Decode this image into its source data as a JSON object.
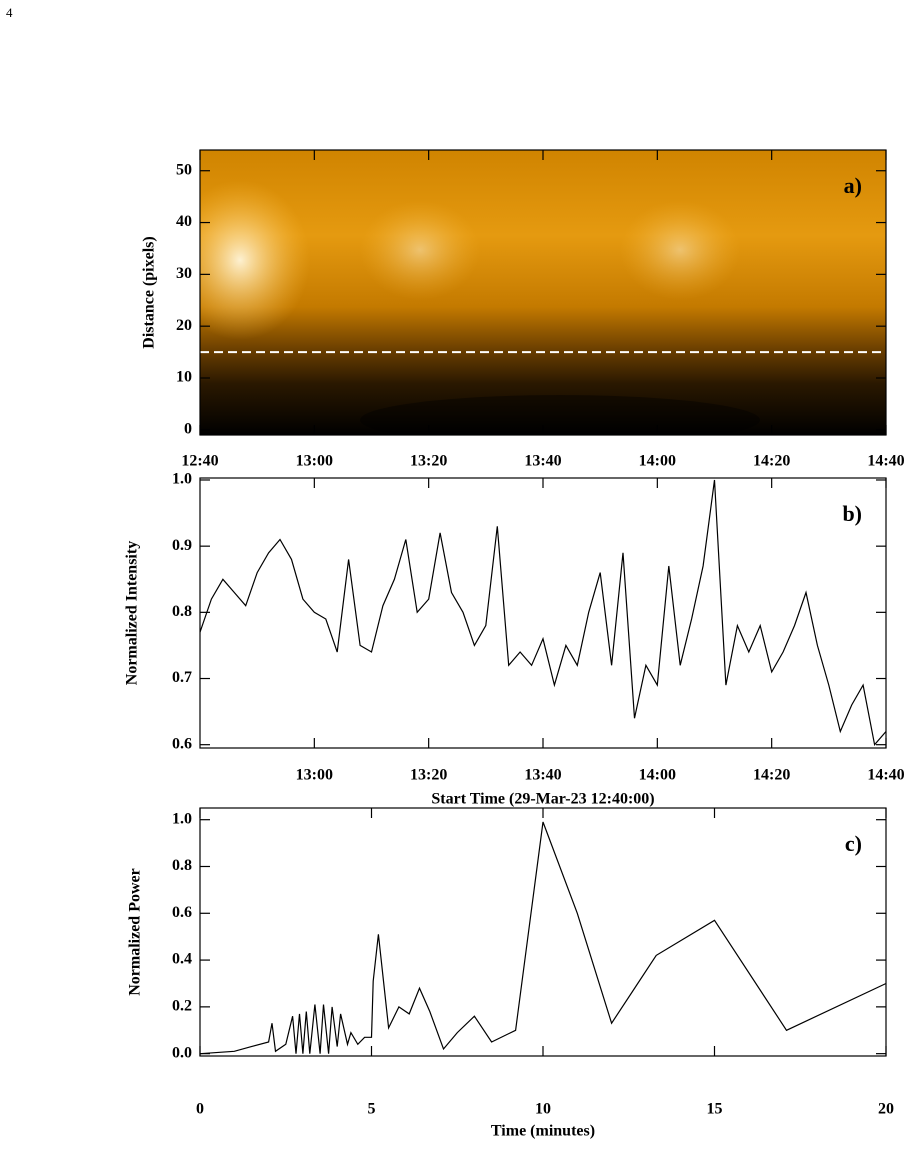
{
  "page_number": "4",
  "chart_data": [
    {
      "type": "heatmap",
      "panel_label": "a)",
      "ylabel": "Distance (pixels)",
      "xlim": [
        0,
        120
      ],
      "xticks": [
        {
          "value": 0,
          "label": "12:40"
        },
        {
          "value": 20,
          "label": "13:00"
        },
        {
          "value": 40,
          "label": "13:20"
        },
        {
          "value": 60,
          "label": "13:40"
        },
        {
          "value": 80,
          "label": "14:00"
        },
        {
          "value": 100,
          "label": "14:20"
        },
        {
          "value": 120,
          "label": "14:40"
        }
      ],
      "ylim": [
        -1,
        54
      ],
      "yticks": [
        0,
        10,
        20,
        30,
        40,
        50
      ],
      "reference_line": 15,
      "reference_color": "#ffffff"
    },
    {
      "type": "line",
      "panel_label": "b)",
      "ylabel": "Normalized Intensity",
      "xlabel": "Start Time (29-Mar-23 12:40:00)",
      "color": "#000000",
      "xlim": [
        0,
        120
      ],
      "xticks": [
        {
          "value": 20,
          "label": "13:00"
        },
        {
          "value": 40,
          "label": "13:20"
        },
        {
          "value": 60,
          "label": "13:40"
        },
        {
          "value": 80,
          "label": "14:00"
        },
        {
          "value": 100,
          "label": "14:20"
        },
        {
          "value": 120,
          "label": "14:40"
        }
      ],
      "ylim": [
        0.595,
        1.003
      ],
      "yticks": [
        0.6,
        0.7,
        0.8,
        0.9,
        {
          "value": 1,
          "label": "1.0"
        }
      ],
      "x": [
        0,
        2,
        4,
        6,
        8,
        10,
        12,
        14,
        16,
        18,
        20,
        22,
        24,
        26,
        28,
        30,
        32,
        34,
        36,
        38,
        40,
        42,
        44,
        46,
        48,
        50,
        52,
        54,
        56,
        58,
        60,
        62,
        64,
        66,
        68,
        70,
        72,
        74,
        76,
        78,
        80,
        82,
        84,
        86,
        88,
        90,
        92,
        94,
        96,
        98,
        100,
        102,
        104,
        106,
        108,
        110,
        112,
        114,
        116,
        118,
        120
      ],
      "values": [
        0.77,
        0.82,
        0.85,
        0.83,
        0.81,
        0.86,
        0.89,
        0.91,
        0.88,
        0.82,
        0.8,
        0.79,
        0.74,
        0.88,
        0.75,
        0.74,
        0.81,
        0.85,
        0.91,
        0.8,
        0.82,
        0.92,
        0.83,
        0.8,
        0.75,
        0.78,
        0.93,
        0.72,
        0.74,
        0.72,
        0.76,
        0.69,
        0.75,
        0.72,
        0.8,
        0.86,
        0.72,
        0.89,
        0.64,
        0.72,
        0.69,
        0.87,
        0.72,
        0.79,
        0.87,
        1.0,
        0.69,
        0.78,
        0.74,
        0.78,
        0.71,
        0.74,
        0.78,
        0.83,
        0.75,
        0.69,
        0.62,
        0.66,
        0.69,
        0.6,
        0.62
      ]
    },
    {
      "type": "line",
      "panel_label": "c)",
      "ylabel": "Normalized Power",
      "xlabel": "Time (minutes)",
      "color": "#000000",
      "xlim": [
        0,
        20
      ],
      "xticks": [
        0,
        5,
        10,
        15,
        20
      ],
      "ylim": [
        -0.01,
        1.05
      ],
      "yticks": [
        {
          "value": 0,
          "label": "0.0"
        },
        0.2,
        0.4,
        0.6,
        0.8,
        {
          "value": 1,
          "label": "1.0"
        }
      ],
      "x": [
        0,
        1,
        1.5,
        2,
        2.1,
        2.2,
        2.5,
        2.7,
        2.8,
        2.9,
        3.0,
        3.1,
        3.2,
        3.35,
        3.5,
        3.6,
        3.75,
        3.85,
        4.0,
        4.1,
        4.3,
        4.4,
        4.6,
        4.8,
        5.0,
        5.05,
        5.2,
        5.5,
        5.8,
        6.1,
        6.4,
        6.7,
        7.1,
        7.5,
        8.0,
        8.5,
        9.2,
        10,
        11,
        12,
        13.3,
        15,
        17.1,
        20
      ],
      "values": [
        0,
        0.01,
        0.03,
        0.05,
        0.13,
        0.01,
        0.04,
        0.16,
        0.0,
        0.17,
        0.0,
        0.18,
        0.0,
        0.21,
        0.0,
        0.21,
        0.0,
        0.2,
        0.03,
        0.17,
        0.04,
        0.09,
        0.04,
        0.07,
        0.07,
        0.31,
        0.51,
        0.11,
        0.2,
        0.17,
        0.28,
        0.18,
        0.02,
        0.09,
        0.16,
        0.05,
        0.1,
        0.99,
        0.6,
        0.13,
        0.42,
        0.57,
        0.1,
        0.3
      ]
    }
  ]
}
